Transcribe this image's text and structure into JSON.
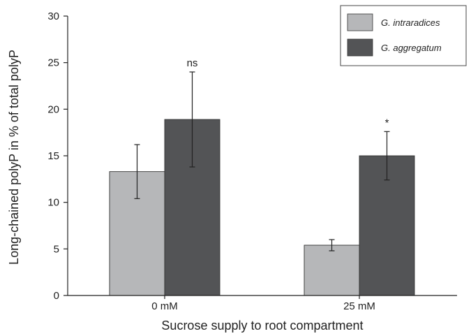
{
  "chart_data": {
    "type": "bar",
    "title": "",
    "xlabel": "Sucrose supply to root compartment",
    "ylabel": "Long-chained polyP in % of total polyP",
    "ylim": [
      0,
      30
    ],
    "yticks": [
      0,
      5,
      10,
      15,
      20,
      25,
      30
    ],
    "categories": [
      "0 mM",
      "25 mM"
    ],
    "series": [
      {
        "name": "G. intraradices",
        "color": "#b6b7b9",
        "values": [
          13.3,
          5.4
        ],
        "errors": [
          2.9,
          0.6
        ]
      },
      {
        "name": "G. aggregatum",
        "color": "#535456",
        "values": [
          18.9,
          15.0
        ],
        "errors": [
          5.1,
          2.6
        ]
      }
    ],
    "significance": [
      "ns",
      "*"
    ],
    "legend_position": "top-right",
    "grid": false
  }
}
